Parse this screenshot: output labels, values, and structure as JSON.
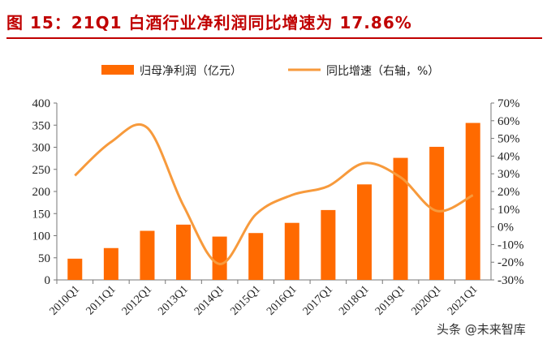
{
  "title": "图 15：21Q1 白酒行业净利润同比增速为 17.86%",
  "watermark": "头条 @未来智库",
  "chart_data": {
    "type": "bar+line",
    "categories": [
      "2010Q1",
      "2011Q1",
      "2012Q1",
      "2013Q1",
      "2014Q1",
      "2015Q1",
      "2016Q1",
      "2017Q1",
      "2018Q1",
      "2019Q1",
      "2020Q1",
      "2021Q1"
    ],
    "series": [
      {
        "name": "归母净利润（亿元）",
        "type": "bar",
        "axis": "left",
        "color": "#ff6a00",
        "values": [
          48,
          72,
          111,
          125,
          98,
          106,
          129,
          158,
          216,
          276,
          301,
          355
        ]
      },
      {
        "name": "同比增速（右轴，%）",
        "type": "line",
        "axis": "right",
        "color": "#f79a3c",
        "values": [
          29,
          48,
          56,
          12,
          -21,
          7,
          18,
          23,
          36,
          28,
          9,
          17.86
        ]
      }
    ],
    "ylim": [
      0,
      400
    ],
    "yticks": [
      "0",
      "50",
      "100",
      "150",
      "200",
      "250",
      "300",
      "350",
      "400"
    ],
    "y2lim": [
      -30,
      70
    ],
    "y2ticks": [
      "-30%",
      "-20%",
      "-10%",
      "0%",
      "10%",
      "20%",
      "30%",
      "40%",
      "50%",
      "60%",
      "70%"
    ],
    "legend": "top"
  }
}
